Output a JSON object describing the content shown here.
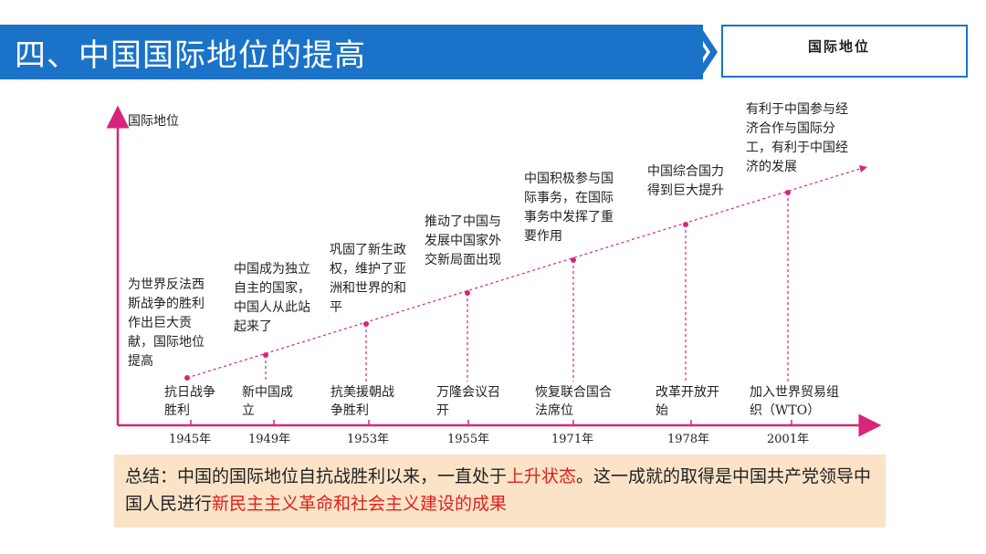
{
  "header": {
    "title": "四、中国国际地位的提高",
    "right_label": "国际地位"
  },
  "colors": {
    "header_blue": "#1a73c9",
    "axis_magenta": "#d6257a",
    "summary_bg": "#fbe3c8",
    "highlight_red": "#e0201b"
  },
  "chart_data": {
    "type": "diagram",
    "y_axis_label": "国际地位",
    "events": [
      {
        "year": "1945年",
        "event": "抗日战争胜利",
        "note": "为世界反法西斯战争的胜利作出巨大贡献，国际地位提高"
      },
      {
        "year": "1949年",
        "event": "新中国成立",
        "note": "中国成为独立自主的国家，中国人从此站起来了"
      },
      {
        "year": "1953年",
        "event": "抗美援朝战争胜利",
        "note": "巩固了新生政权，维护了亚洲和世界的和平"
      },
      {
        "year": "1955年",
        "event": "万隆会议召开",
        "note": "推动了中国与发展中国家外交新局面出现"
      },
      {
        "year": "1971年",
        "event": "恢复联合国合法席位",
        "note": "中国积极参与国际事务，在国际事务中发挥了重要作用"
      },
      {
        "year": "1978年",
        "event": "改革开放开始",
        "note": "中国综合国力得到巨大提升"
      },
      {
        "year": "2001年",
        "event": "加入世界贸易组织（WTO）",
        "note": "有利于中国参与经济合作与国际分工，有利于中国经济的发展"
      }
    ]
  },
  "summary": {
    "p1": "总结：中国的国际地位自抗战胜利以来，一直处于",
    "h1": "上升状态",
    "p2": "。这一成就的取得是中国共产党领导中国人民进行",
    "h2": "新民主主义革命和社会主义建设的成果"
  }
}
